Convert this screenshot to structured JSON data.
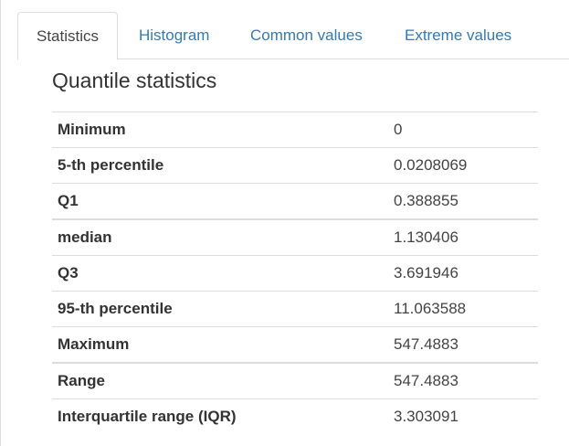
{
  "tabs": [
    {
      "label": "Statistics",
      "active": true
    },
    {
      "label": "Histogram",
      "active": false
    },
    {
      "label": "Common values",
      "active": false
    },
    {
      "label": "Extreme values",
      "active": false
    }
  ],
  "section_title": "Quantile statistics",
  "rows": [
    {
      "label": "Minimum",
      "value": "0"
    },
    {
      "label": "5-th percentile",
      "value": "0.0208069"
    },
    {
      "label": "Q1",
      "value": "0.388855"
    },
    {
      "label": "median",
      "value": "1.130406"
    },
    {
      "label": "Q3",
      "value": "3.691946"
    },
    {
      "label": "95-th percentile",
      "value": "11.063588"
    },
    {
      "label": "Maximum",
      "value": "547.4883"
    },
    {
      "label": "Range",
      "value": "547.4883"
    },
    {
      "label": "Interquartile range (IQR)",
      "value": "3.303091"
    }
  ],
  "colors": {
    "link": "#337ab7",
    "border": "#dddddd",
    "text": "#333333"
  }
}
